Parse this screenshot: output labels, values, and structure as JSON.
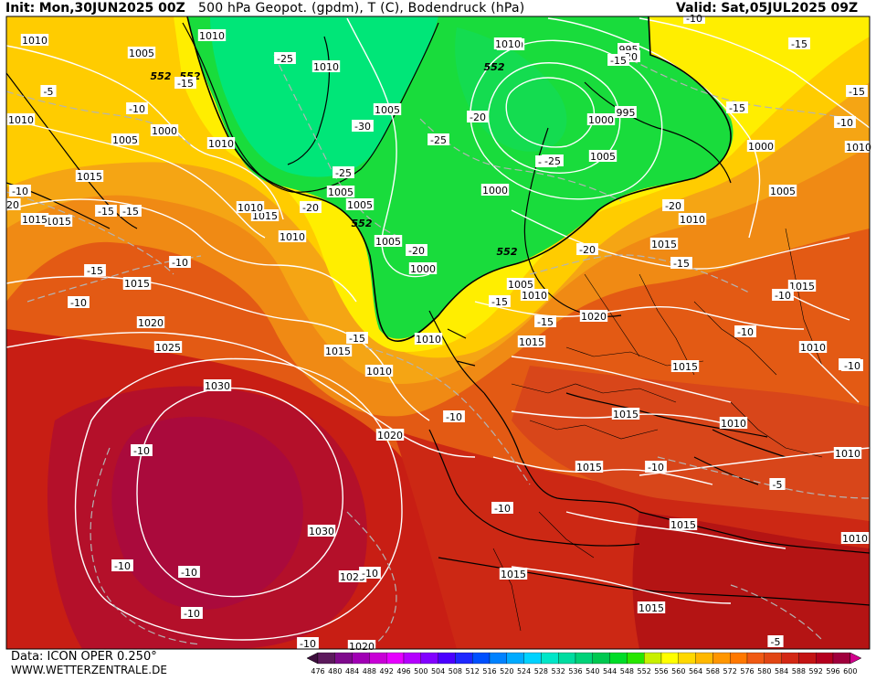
{
  "header": {
    "init_label": "Init:",
    "init_value": "Mon,30JUN2025 00Z",
    "title": "500 hPa Geopot. (gpdm), T (C), Bodendruck (hPa)",
    "valid_label": "Valid:",
    "valid_value": "Sat,05JUL2025 09Z"
  },
  "footer": {
    "data_line": "Data: ICON OPER 0.250°",
    "website": "WWW.WETTERZENTRALE.DE"
  },
  "colorbar": {
    "levels": [
      "476",
      "480",
      "484",
      "488",
      "492",
      "496",
      "500",
      "504",
      "508",
      "512",
      "516",
      "520",
      "524",
      "528",
      "532",
      "536",
      "540",
      "544",
      "548",
      "552",
      "556",
      "560",
      "564",
      "568",
      "572",
      "576",
      "580",
      "584",
      "588",
      "592",
      "596",
      "600"
    ],
    "colors": [
      "#3d0f3d",
      "#5c1a5c",
      "#7e0a8c",
      "#a000b4",
      "#c800d6",
      "#e600ff",
      "#b400ff",
      "#8200ff",
      "#4b00ff",
      "#1e28ff",
      "#0050ff",
      "#0082ff",
      "#00aaff",
      "#00d2ff",
      "#00e6c8",
      "#00dca0",
      "#00d278",
      "#00c850",
      "#00dc28",
      "#28e600",
      "#c8f000",
      "#ffff00",
      "#ffd800",
      "#ffb800",
      "#ff9600",
      "#ff7800",
      "#f05a14",
      "#e14614",
      "#d22814",
      "#c31414",
      "#b4001e",
      "#a0003c",
      "#d2008c"
    ]
  },
  "map": {
    "pressure_labels": [
      "1010",
      "1005",
      "1000",
      "995",
      "1015",
      "1020",
      "1025",
      "1030",
      "552"
    ],
    "temperature_labels": [
      "-5",
      "-10",
      "-15",
      "-20",
      "-25",
      "-30",
      "20"
    ],
    "colors": {
      "green_trough": "#19dc3c",
      "green_core": "#00e678",
      "yellow": "#fff000",
      "orange": "#f59a14",
      "red_orange": "#dc4614",
      "red": "#c81e14",
      "dark_red": "#aa0a28"
    },
    "isobar_labels": [
      {
        "t": "1010"
      },
      {
        "t": "1005"
      },
      {
        "t": "1000"
      },
      {
        "t": "1005"
      },
      {
        "t": "1015"
      },
      {
        "t": "1015"
      },
      {
        "t": "1010"
      },
      {
        "t": "1010"
      },
      {
        "t": "1010"
      },
      {
        "t": "1005"
      },
      {
        "t": "1010"
      },
      {
        "t": "1015"
      },
      {
        "t": "1010"
      },
      {
        "t": "1005"
      },
      {
        "t": "1005"
      },
      {
        "t": "1000"
      },
      {
        "t": "1005"
      },
      {
        "t": "1000"
      },
      {
        "t": "1000"
      },
      {
        "t": "995"
      },
      {
        "t": "1000"
      },
      {
        "t": "995"
      },
      {
        "t": "1005"
      },
      {
        "t": "1010"
      },
      {
        "t": "1000"
      },
      {
        "t": "1005"
      },
      {
        "t": "1010"
      },
      {
        "t": "1010"
      },
      {
        "t": "1015"
      },
      {
        "t": "1005"
      },
      {
        "t": "1010"
      },
      {
        "t": "1020"
      },
      {
        "t": "1015"
      },
      {
        "t": "1010"
      },
      {
        "t": "1015"
      },
      {
        "t": "1015"
      },
      {
        "t": "1015"
      },
      {
        "t": "1010"
      },
      {
        "t": "1010"
      },
      {
        "t": "1010"
      },
      {
        "t": "1020"
      },
      {
        "t": "1025"
      },
      {
        "t": "1015"
      },
      {
        "t": "1010"
      },
      {
        "t": "1020"
      },
      {
        "t": "1030"
      },
      {
        "t": "1030"
      },
      {
        "t": "1025"
      },
      {
        "t": "1020"
      },
      {
        "t": "1015"
      },
      {
        "t": "1015"
      },
      {
        "t": "1015"
      },
      {
        "t": "1015"
      },
      {
        "t": "1015"
      },
      {
        "t": "1010"
      },
      {
        "t": "1010"
      },
      {
        "t": "1015"
      },
      {
        "t": "1015"
      }
    ],
    "height_labels": [
      {
        "t": "552"
      },
      {
        "t": "552"
      },
      {
        "t": "552"
      },
      {
        "t": "552"
      },
      {
        "t": "552"
      }
    ],
    "temp_labels": [
      {
        "t": "-5"
      },
      {
        "t": "-10"
      },
      {
        "t": "-15"
      },
      {
        "t": "-25"
      },
      {
        "t": "-15"
      },
      {
        "t": "-10"
      },
      {
        "t": "20"
      },
      {
        "t": "-15"
      },
      {
        "t": "-15"
      },
      {
        "t": "-10"
      },
      {
        "t": "-10"
      },
      {
        "t": "-30"
      },
      {
        "t": "-25"
      },
      {
        "t": "-25"
      },
      {
        "t": "-20"
      },
      {
        "t": "-25"
      },
      {
        "t": "-20"
      },
      {
        "t": "-20"
      },
      {
        "t": "-15"
      },
      {
        "t": "-25"
      },
      {
        "t": "-20"
      },
      {
        "t": "-10"
      },
      {
        "t": "-15"
      },
      {
        "t": "-15"
      },
      {
        "t": "-10"
      },
      {
        "t": "-15"
      },
      {
        "t": "-10"
      },
      {
        "t": "-20"
      },
      {
        "t": "-20"
      },
      {
        "t": "-15"
      },
      {
        "t": "-15"
      },
      {
        "t": "-15"
      },
      {
        "t": "-15"
      },
      {
        "t": "-10"
      },
      {
        "t": "-10"
      },
      {
        "t": "-10"
      },
      {
        "t": "-10"
      },
      {
        "t": "-10"
      },
      {
        "t": "-10"
      },
      {
        "t": "-10"
      },
      {
        "t": "-10"
      },
      {
        "t": "-10"
      },
      {
        "t": "-10"
      },
      {
        "t": "-5"
      },
      {
        "t": "-5"
      },
      {
        "t": "-10"
      },
      {
        "t": "-10"
      }
    ]
  }
}
